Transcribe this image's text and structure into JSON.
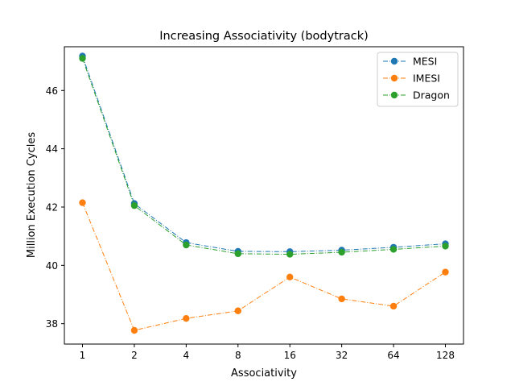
{
  "chart_data": {
    "type": "line",
    "title": "Increasing Associativity (bodytrack)",
    "xlabel": "Associativity",
    "ylabel": "Million Execution Cycles",
    "x": [
      1,
      2,
      4,
      8,
      16,
      32,
      64,
      128
    ],
    "x_scale": "log2",
    "xticks": [
      "1",
      "2",
      "4",
      "8",
      "16",
      "32",
      "64",
      "128"
    ],
    "yticks": [
      "38",
      "40",
      "42",
      "44",
      "46"
    ],
    "ylim": [
      37.3,
      47.5
    ],
    "grid": false,
    "legend_position": "top-right",
    "series": [
      {
        "name": "MESI",
        "color": "#1f77b4",
        "values": [
          47.18,
          42.12,
          40.78,
          40.48,
          40.47,
          40.52,
          40.62,
          40.74
        ]
      },
      {
        "name": "IMESI",
        "color": "#ff7f0e",
        "values": [
          42.15,
          37.77,
          38.18,
          38.44,
          39.6,
          38.85,
          38.6,
          39.77
        ]
      },
      {
        "name": "Dragon",
        "color": "#2ca02c",
        "values": [
          47.1,
          42.05,
          40.7,
          40.4,
          40.38,
          40.45,
          40.55,
          40.66
        ]
      }
    ]
  }
}
